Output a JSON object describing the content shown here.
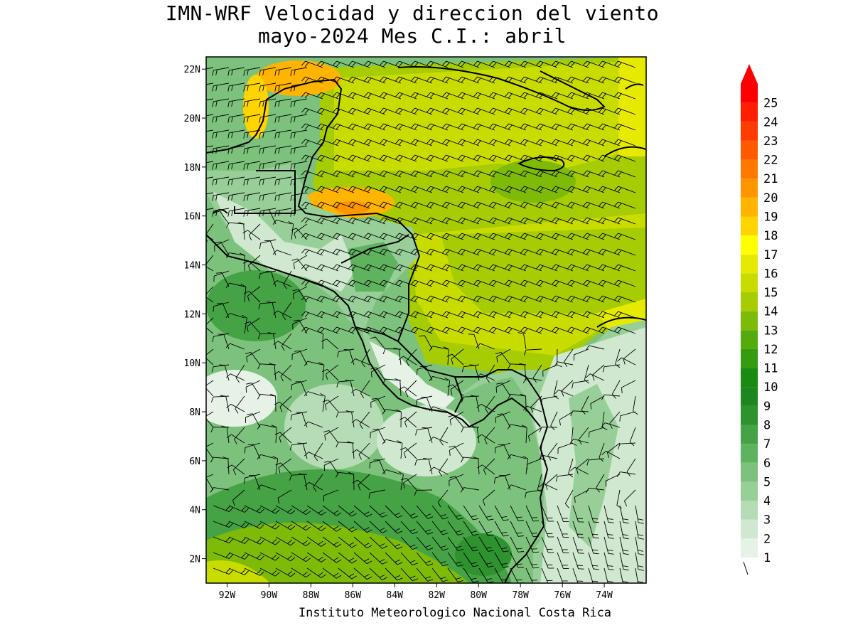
{
  "title": {
    "line1": "IMN-WRF Velocidad y direccion del viento",
    "line2": "mayo-2024 Mes C.I.: abril"
  },
  "credit": "Instituto Meteorologico Nacional Costa Rica",
  "map": {
    "lon_range": [
      -93.0,
      -72.0
    ],
    "lat_range": [
      1.0,
      22.5
    ],
    "lat_ticks": [
      "2N",
      "4N",
      "6N",
      "8N",
      "10N",
      "12N",
      "14N",
      "16N",
      "18N",
      "20N",
      "22N"
    ],
    "lat_values": [
      2,
      4,
      6,
      8,
      10,
      12,
      14,
      16,
      18,
      20,
      22
    ],
    "lon_ticks": [
      "92W",
      "90W",
      "88W",
      "86W",
      "84W",
      "82W",
      "80W",
      "78W",
      "76W",
      "74W"
    ],
    "lon_values": [
      -92,
      -90,
      -88,
      -86,
      -84,
      -82,
      -80,
      -78,
      -76,
      -74
    ]
  },
  "colorbar": {
    "labels": [
      "1",
      "2",
      "3",
      "4",
      "5",
      "6",
      "7",
      "8",
      "9",
      "10",
      "11",
      "12",
      "13",
      "14",
      "15",
      "16",
      "17",
      "18",
      "19",
      "20",
      "21",
      "22",
      "23",
      "24",
      "25"
    ],
    "colors": [
      "#e6f2e6",
      "#cfe8cf",
      "#b5dcb5",
      "#98cf98",
      "#7cc27c",
      "#5fb35f",
      "#45a245",
      "#2e922e",
      "#1e861e",
      "#1a8a10",
      "#349c0e",
      "#55aa0c",
      "#7ebb08",
      "#a6cc04",
      "#c9dc00",
      "#e6ea00",
      "#ffff00",
      "#ffd400",
      "#ffb400",
      "#ff9600",
      "#ff7800",
      "#ff5a00",
      "#ff3c00",
      "#ff1e00",
      "#ff0000"
    ],
    "overflow_color": "#ff0000",
    "calm_symbol_label": ""
  }
}
